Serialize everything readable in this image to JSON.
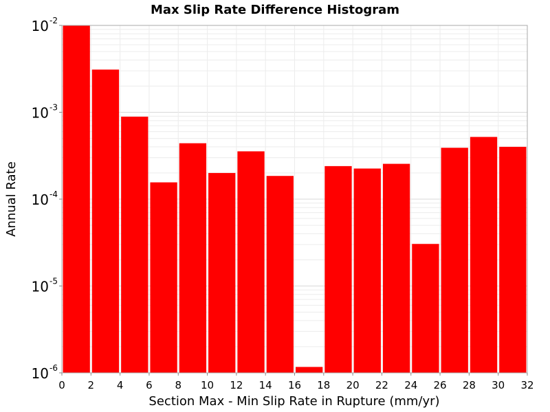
{
  "chart_data": {
    "type": "bar",
    "title": "Max Slip Rate Difference Histogram",
    "xlabel": "Section Max - Min Slip Rate in Rupture (mm/yr)",
    "ylabel": "Annual Rate",
    "yscale": "log",
    "xlim": [
      0,
      32
    ],
    "ylim": [
      1e-06,
      0.01
    ],
    "bin_width": 2,
    "grid": true,
    "legend": "none",
    "bar_color": "#ff0000",
    "x_ticks": [
      "0",
      "2",
      "4",
      "6",
      "8",
      "10",
      "12",
      "14",
      "16",
      "18",
      "20",
      "22",
      "24",
      "26",
      "28",
      "30",
      "32"
    ],
    "y_ticks": [
      {
        "base": "10",
        "exp": "-6"
      },
      {
        "base": "10",
        "exp": "-5"
      },
      {
        "base": "10",
        "exp": "-4"
      },
      {
        "base": "10",
        "exp": "-3"
      },
      {
        "base": "10",
        "exp": "-2"
      }
    ],
    "bins": [
      {
        "x": 1,
        "value": 0.01
      },
      {
        "x": 3,
        "value": 0.0031
      },
      {
        "x": 5,
        "value": 0.00089
      },
      {
        "x": 7,
        "value": 0.000156
      },
      {
        "x": 9,
        "value": 0.00044
      },
      {
        "x": 11,
        "value": 0.0002
      },
      {
        "x": 13,
        "value": 0.000355
      },
      {
        "x": 15,
        "value": 0.000185
      },
      {
        "x": 17,
        "value": 1.17e-06
      },
      {
        "x": 19,
        "value": 0.00024
      },
      {
        "x": 21,
        "value": 0.000225
      },
      {
        "x": 23,
        "value": 0.000255
      },
      {
        "x": 25,
        "value": 3.05e-05
      },
      {
        "x": 27,
        "value": 0.00039
      },
      {
        "x": 29,
        "value": 0.00052
      },
      {
        "x": 31,
        "value": 0.0004
      }
    ]
  }
}
